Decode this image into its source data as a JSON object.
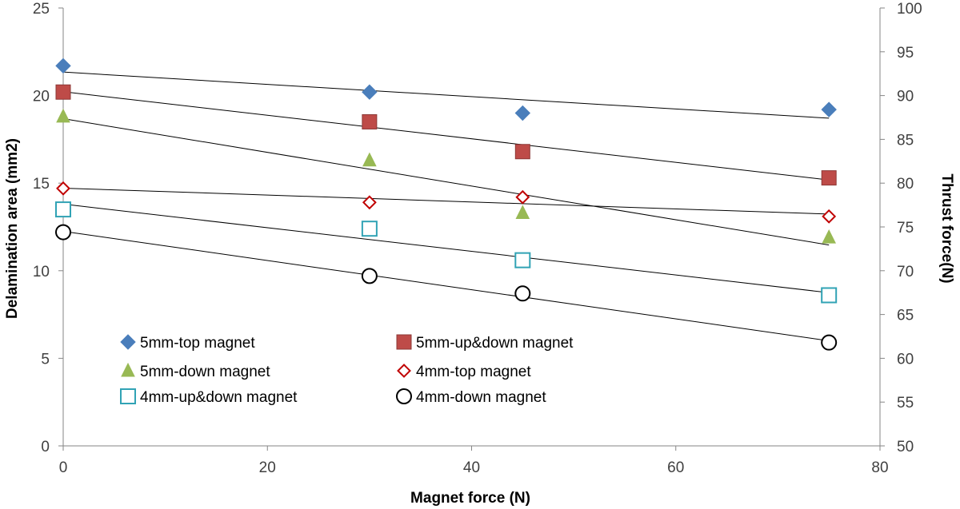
{
  "chart_data": {
    "type": "scatter",
    "xlabel": "Magnet force (N)",
    "ylabel": "Delamination area (mm2)",
    "y2label": "Thrust force(N)",
    "xlim": [
      0,
      80
    ],
    "ylim": [
      0,
      25
    ],
    "y2lim": [
      50,
      100
    ],
    "x_ticks": [
      "0",
      "20",
      "40",
      "60",
      "80"
    ],
    "y_ticks": [
      "0",
      "5",
      "10",
      "15",
      "20",
      "25"
    ],
    "y2_ticks": [
      "50",
      "55",
      "60",
      "65",
      "70",
      "75",
      "80",
      "85",
      "90",
      "95",
      "100"
    ],
    "grid": false,
    "legend_position": "lower-left",
    "trendlines": "linear",
    "series": [
      {
        "name": "5mm-top magnet",
        "marker": "diamond-filled",
        "color": "#4a7ebb",
        "x": [
          0,
          30,
          45,
          75
        ],
        "y": [
          21.7,
          20.2,
          19.0,
          19.2
        ]
      },
      {
        "name": "5mm-up&down magnet",
        "marker": "square-filled",
        "color": "#be4b48",
        "x": [
          0,
          30,
          45,
          75
        ],
        "y": [
          20.2,
          18.5,
          16.8,
          15.3
        ]
      },
      {
        "name": "5mm-down magnet",
        "marker": "triangle-filled",
        "color": "#98b954",
        "x": [
          0,
          30,
          45,
          75
        ],
        "y": [
          18.8,
          16.3,
          13.3,
          11.9
        ]
      },
      {
        "name": "4mm-top magnet",
        "marker": "diamond-open",
        "color": "#c00000",
        "x": [
          0,
          30,
          45,
          75
        ],
        "y": [
          14.7,
          13.9,
          14.2,
          13.1
        ]
      },
      {
        "name": "4mm-up&down magnet",
        "marker": "square-open",
        "color": "#31a3b5",
        "x": [
          0,
          30,
          45,
          75
        ],
        "y": [
          13.5,
          12.4,
          10.6,
          8.6
        ]
      },
      {
        "name": "4mm-down magnet",
        "marker": "circle-open",
        "color": "#000000",
        "x": [
          0,
          30,
          45,
          75
        ],
        "y": [
          12.2,
          9.7,
          8.7,
          5.9
        ]
      }
    ]
  }
}
